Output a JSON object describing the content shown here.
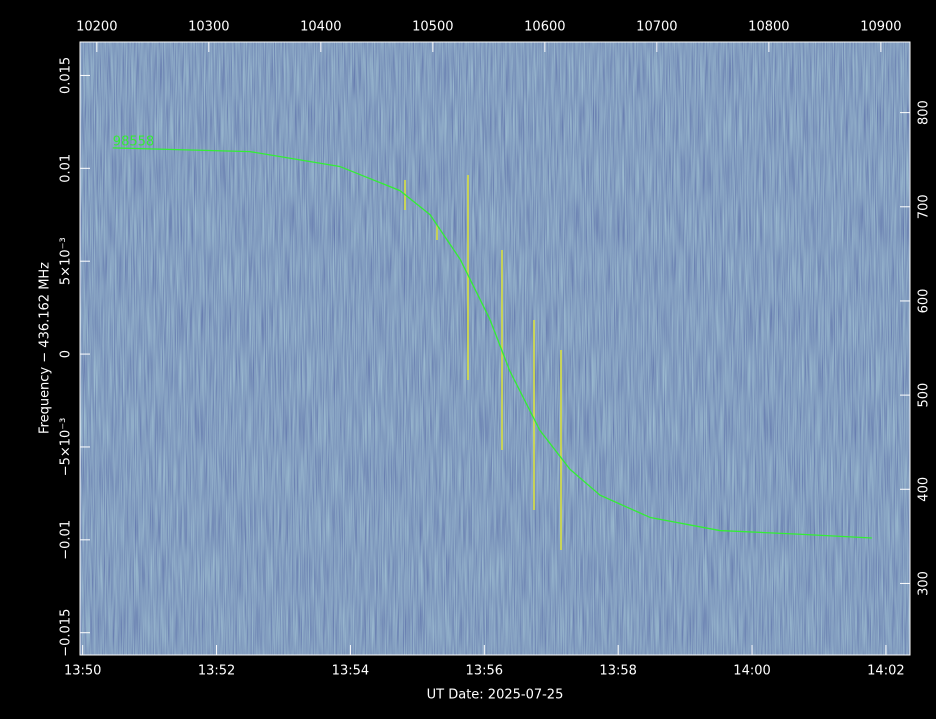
{
  "chart_data": {
    "type": "line",
    "xlabel": "UT Date: 2025-07-25",
    "ylabel": "Frequency − 436.162 MHz",
    "x": [
      830.45,
      832.5,
      833.84,
      834.74,
      835.19,
      835.64,
      836.08,
      836.38,
      836.83,
      837.28,
      837.73,
      838.48,
      839.52,
      840.72,
      841.79
    ],
    "series": [
      {
        "name": "98558",
        "color": "#33ee33",
        "values": [
          0.0111,
          0.0109,
          0.0101,
          0.0088,
          0.0075,
          0.0051,
          0.0019,
          -0.0009,
          -0.0041,
          -0.0062,
          -0.0076,
          -0.0088,
          -0.0095,
          -0.0097,
          -0.0099
        ]
      }
    ],
    "xlim": [
      829.96,
      842.36
    ],
    "xticks": [
      {
        "value": 830,
        "label": "13:50"
      },
      {
        "value": 832,
        "label": "13:52"
      },
      {
        "value": 834,
        "label": "13:54"
      },
      {
        "value": 836,
        "label": "13:56"
      },
      {
        "value": 838,
        "label": "13:58"
      },
      {
        "value": 840,
        "label": "14:00"
      },
      {
        "value": 842,
        "label": "14:02"
      }
    ],
    "x2lim": [
      10185,
      10926
    ],
    "x2ticks": [
      10200,
      10300,
      10400,
      10500,
      10600,
      10700,
      10800,
      10900
    ],
    "ylim": [
      -0.0162,
      0.0168
    ],
    "yticks": [
      {
        "value": -0.015,
        "label": "−0.015"
      },
      {
        "value": -0.01,
        "label": "−0.01"
      },
      {
        "value": -0.005,
        "label": "−5×10⁻³"
      },
      0,
      {
        "value": 0.005,
        "label": "5×10⁻³"
      },
      0.01,
      0.015
    ],
    "y2lim": [
      224,
      875
    ],
    "y2ticks": [
      300,
      400,
      500,
      600,
      700,
      800
    ]
  }
}
